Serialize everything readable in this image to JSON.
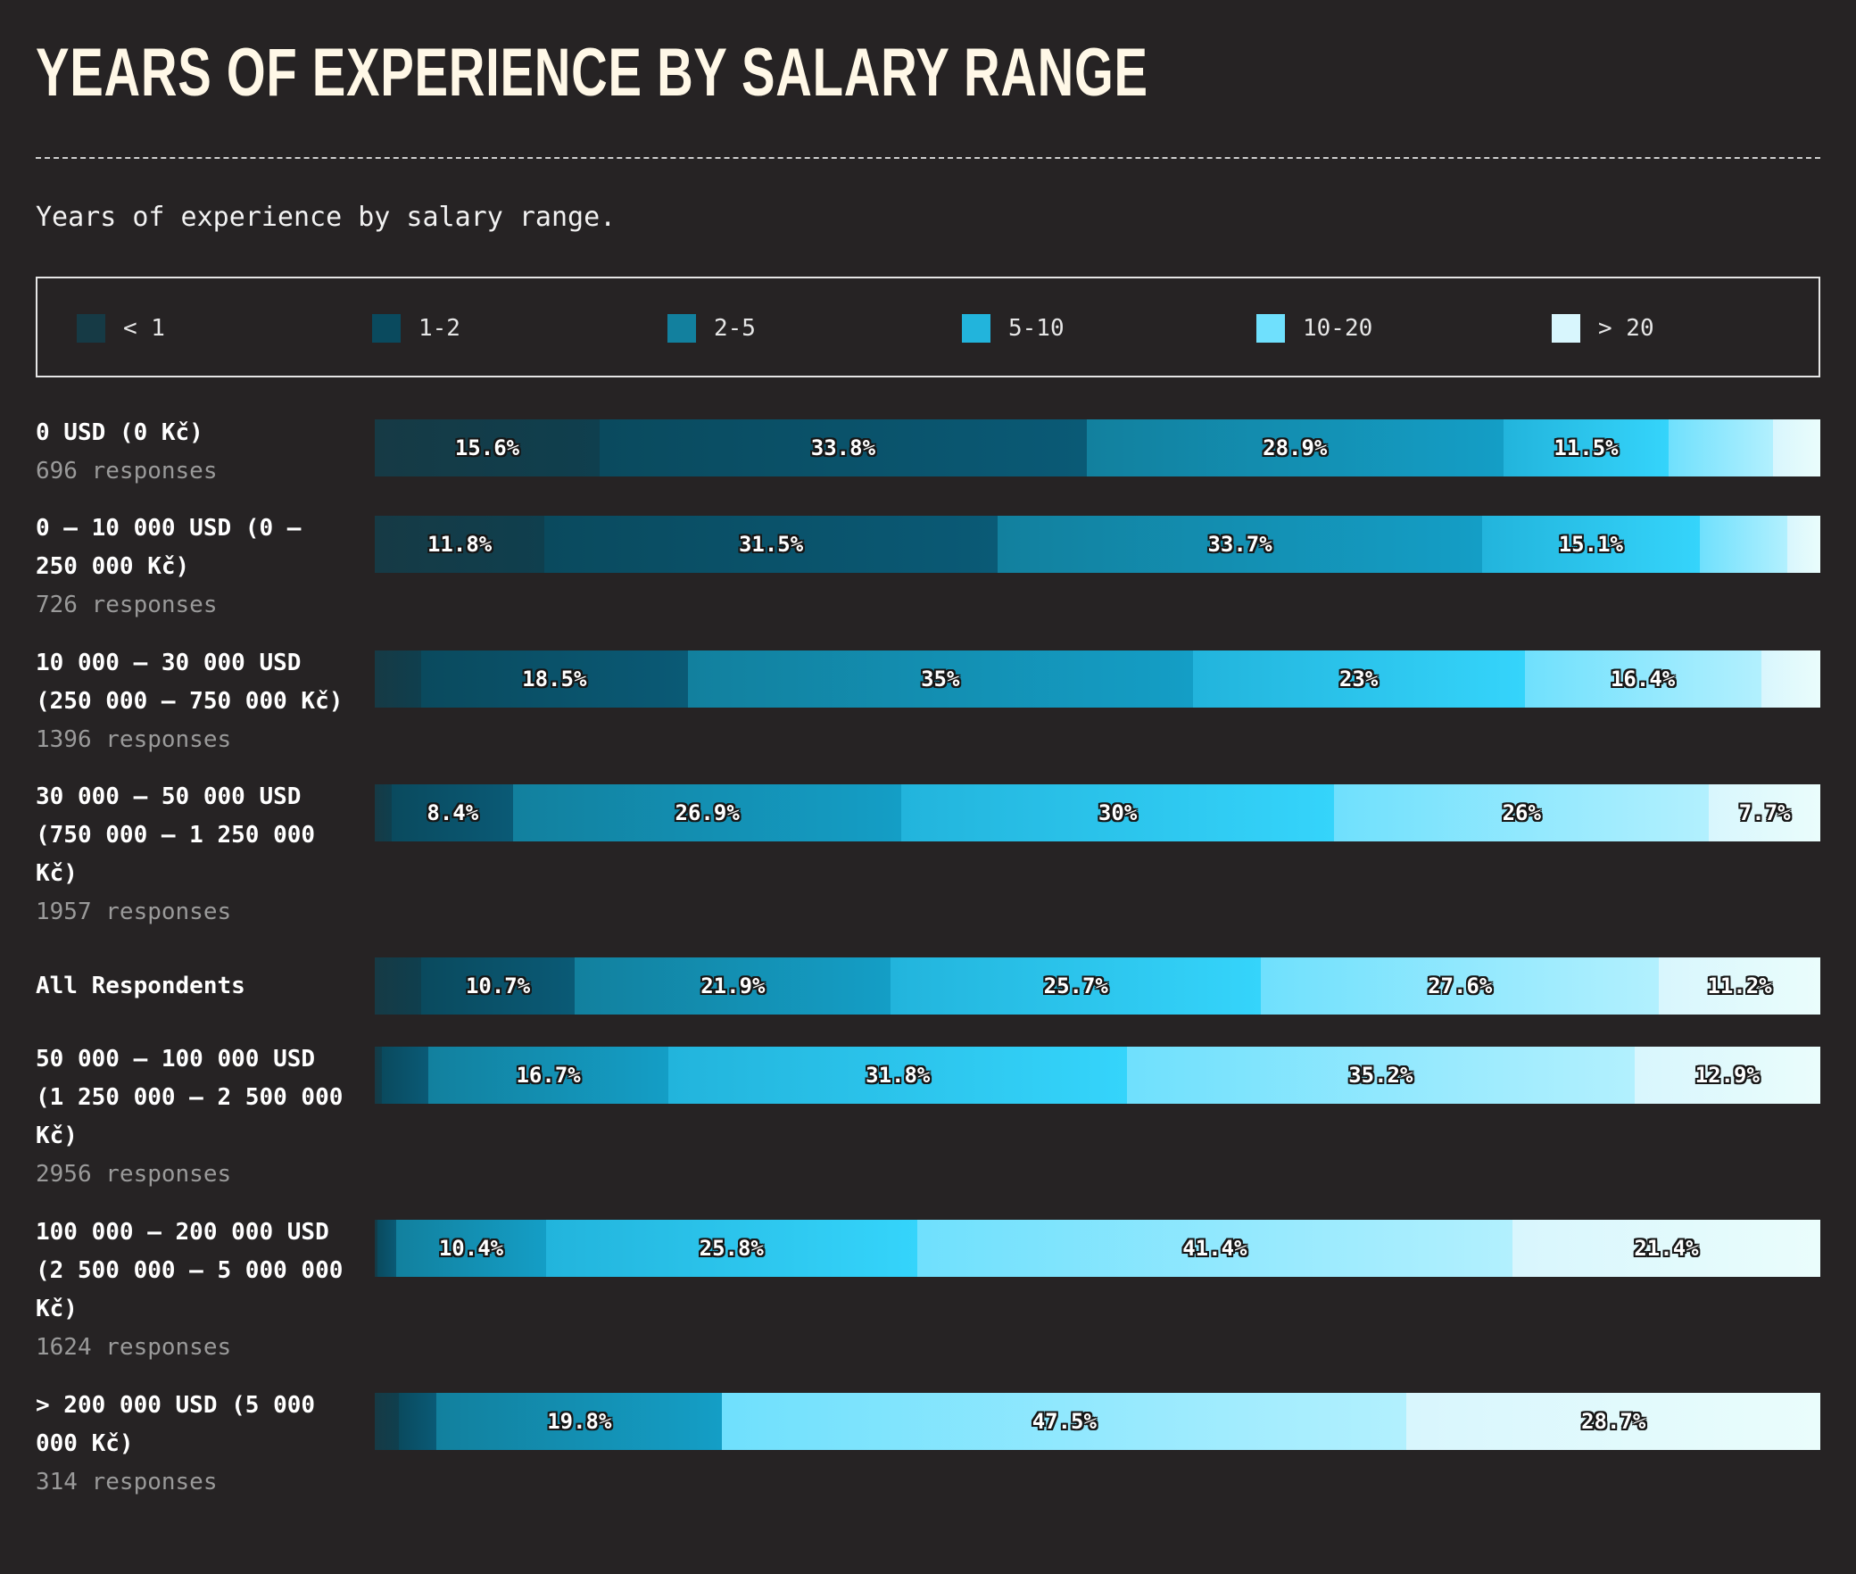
{
  "header": {
    "title": "YEARS OF EXPERIENCE BY SALARY RANGE",
    "subtitle": "Years of experience by salary range."
  },
  "legend": [
    {
      "label": "< 1",
      "color": "#163a45"
    },
    {
      "label": "1-2",
      "color": "#0a4a5e"
    },
    {
      "label": "2-5",
      "color": "#12809e"
    },
    {
      "label": "5-10",
      "color": "#22b4dc"
    },
    {
      "label": "10-20",
      "color": "#6fe0fd"
    },
    {
      "label": "> 20",
      "color": "#d8f6fd"
    }
  ],
  "chart_data": {
    "type": "bar",
    "orientation": "horizontal",
    "stacked": true,
    "normalized": true,
    "title": "YEARS OF EXPERIENCE BY SALARY RANGE",
    "subtitle": "Years of experience by salary range.",
    "series_names": [
      "< 1",
      "1-2",
      "2-5",
      "5-10",
      "10-20",
      "> 20"
    ],
    "segment_gradients": [
      [
        "#163a45",
        "#0f3f4e"
      ],
      [
        "#0a4a5e",
        "#0a5a76"
      ],
      [
        "#12809e",
        "#149ec6"
      ],
      [
        "#22b4dc",
        "#35d4fb"
      ],
      [
        "#6fe0fd",
        "#b2f0fe"
      ],
      [
        "#d8f6fd",
        "#eafdfc"
      ]
    ],
    "rows": [
      {
        "name": "0 USD (0 Kč)",
        "responses": "696 responses",
        "values": [
          15.6,
          33.8,
          28.9,
          11.5,
          7.2,
          3.3
        ],
        "labels": [
          "15.6%",
          "33.8%",
          "28.9%",
          "11.5%",
          "",
          ""
        ]
      },
      {
        "name": "0 – 10 000 USD (0 – 250 000 Kč)",
        "responses": "726 responses",
        "values": [
          11.8,
          31.5,
          33.7,
          15.1,
          6.1,
          2.3
        ],
        "labels": [
          "11.8%",
          "31.5%",
          "33.7%",
          "15.1%",
          "",
          ""
        ]
      },
      {
        "name": "10 000 – 30 000 USD (250 000 – 750 000 Kč)",
        "responses": "1396 responses",
        "values": [
          3.2,
          18.5,
          35,
          23,
          16.4,
          4.1
        ],
        "labels": [
          "",
          "18.5%",
          "35%",
          "23%",
          "16.4%",
          ""
        ]
      },
      {
        "name": "30 000 – 50 000 USD (750 000 – 1 250 000 Kč)",
        "responses": "1957 responses",
        "values": [
          1.2,
          8.4,
          26.9,
          30,
          26,
          7.7
        ],
        "labels": [
          "",
          "8.4%",
          "26.9%",
          "30%",
          "26%",
          "7.7%"
        ]
      },
      {
        "name": "All Respondents",
        "responses": "",
        "values": [
          3.2,
          10.7,
          21.9,
          25.7,
          27.6,
          11.2
        ],
        "labels": [
          "",
          "10.7%",
          "21.9%",
          "25.7%",
          "27.6%",
          "11.2%"
        ]
      },
      {
        "name": "50 000 – 100 000 USD (1 250 000 – 2 500 000 Kč)",
        "responses": "2956 responses",
        "values": [
          0.5,
          3.2,
          16.7,
          31.8,
          35.2,
          12.9
        ],
        "labels": [
          "",
          "",
          "16.7%",
          "31.8%",
          "35.2%",
          "12.9%"
        ]
      },
      {
        "name": "100 000 – 200 000 USD (2 500 000 – 5 000 000 Kč)",
        "responses": "1624 responses",
        "values": [
          0.2,
          1.3,
          10.4,
          25.8,
          41.4,
          21.4
        ],
        "labels": [
          "",
          "",
          "10.4%",
          "25.8%",
          "41.4%",
          "21.4%"
        ]
      },
      {
        "name": "> 200 000 USD (5 000 000 Kč)",
        "responses": "314 responses",
        "values": [
          1.7,
          2.6,
          19.8,
          0,
          47.5,
          28.7
        ],
        "labels": [
          "",
          "",
          "19.8%",
          "",
          "47.5%",
          "28.7%"
        ]
      }
    ]
  }
}
